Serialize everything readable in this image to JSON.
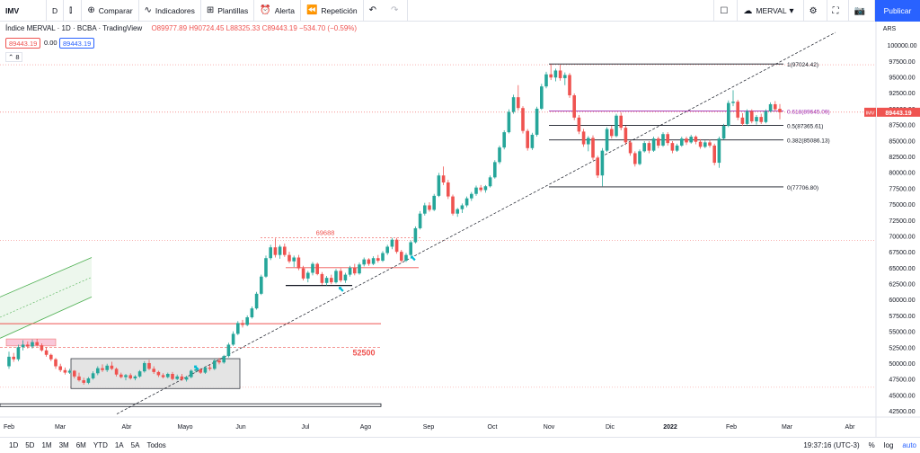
{
  "toolbar": {
    "symbol": "IMV",
    "interval": "D",
    "compare": "Comparar",
    "indicators": "Indicadores",
    "templates": "Plantillas",
    "alert": "Alerta",
    "replay": "Repetición",
    "layout_name": "MERVAL",
    "publish": "Publicar"
  },
  "legend": {
    "title": "Índice MERVAL · 1D · BCBA · TradingView",
    "ohlc": "O89977.89 H90724.45 L88325.33 C89443.19 −534.70 (−0.59%)",
    "bid": "89443.19",
    "spread": "0.00",
    "ask": "89443.19",
    "collapse_count": "8"
  },
  "colors": {
    "up": "#26a69a",
    "down": "#ef5350",
    "fib": "#9c27b0",
    "accent": "#2962ff"
  },
  "bottom": {
    "ranges": [
      "1D",
      "5D",
      "1M",
      "3M",
      "6M",
      "YTD",
      "1A",
      "5A",
      "Todos"
    ],
    "time": "19:37:16 (UTC-3)",
    "percent": "%",
    "log": "log",
    "auto": "auto"
  },
  "chart_data": {
    "type": "candlestick",
    "currency": "ARS",
    "last_price": "89443.19",
    "last_price_tag": "IMV",
    "y_ticks": [
      42500,
      45000,
      47500,
      50000,
      52500,
      55000,
      57500,
      60000,
      62500,
      65000,
      67500,
      70000,
      72500,
      75000,
      77500,
      80000,
      82500,
      85000,
      87500,
      90000,
      92500,
      95000,
      97500,
      100000
    ],
    "ylim": [
      41800,
      102000
    ],
    "x_ticks": [
      "Feb",
      "Mar",
      "Abr",
      "Mayo",
      "Jun",
      "Jul",
      "Ago",
      "Sep",
      "Oct",
      "Nov",
      "Dic",
      "2022",
      "Feb",
      "Mar",
      "Abr"
    ],
    "fib_levels": [
      {
        "label": "1(97024.42)",
        "value": 97024.42
      },
      {
        "label": "0.618(89645.09)",
        "value": 89645.09
      },
      {
        "label": "0.5(87365.61)",
        "value": 87365.61
      },
      {
        "label": "0.382(85086.13)",
        "value": 85086.13
      },
      {
        "label": "0(77706.80)",
        "value": 77706.8
      }
    ],
    "annotations": [
      {
        "text": "69688",
        "value": 69688
      },
      {
        "text": "52500",
        "value": 52500
      }
    ],
    "candles": [
      [
        0,
        49500,
        51800,
        49100,
        51000
      ],
      [
        1,
        51000,
        51600,
        50200,
        50600
      ],
      [
        2,
        50600,
        52900,
        50300,
        52500
      ],
      [
        3,
        52500,
        53600,
        52000,
        52900
      ],
      [
        4,
        52900,
        53400,
        52300,
        52600
      ],
      [
        5,
        52600,
        53700,
        52300,
        53300
      ],
      [
        6,
        53300,
        53800,
        52600,
        52800
      ],
      [
        7,
        52800,
        53100,
        51800,
        52000
      ],
      [
        8,
        52000,
        52500,
        51000,
        51300
      ],
      [
        9,
        51300,
        51500,
        50300,
        50600
      ],
      [
        10,
        50600,
        50800,
        49100,
        49500
      ],
      [
        11,
        49500,
        49900,
        48600,
        48900
      ],
      [
        12,
        48900,
        49300,
        48200,
        48500
      ],
      [
        13,
        48500,
        49100,
        48300,
        48800
      ],
      [
        14,
        48800,
        48900,
        47600,
        47900
      ],
      [
        15,
        47900,
        48500,
        47100,
        47300
      ],
      [
        16,
        47300,
        47700,
        46600,
        46900
      ],
      [
        17,
        46900,
        47800,
        46700,
        47600
      ],
      [
        18,
        47600,
        48700,
        47400,
        48400
      ],
      [
        19,
        48400,
        49500,
        48100,
        49200
      ],
      [
        20,
        49200,
        49800,
        48600,
        48900
      ],
      [
        21,
        48900,
        49900,
        48600,
        49600
      ],
      [
        22,
        49600,
        50200,
        48900,
        49100
      ],
      [
        23,
        49100,
        49300,
        47900,
        48200
      ],
      [
        24,
        48200,
        48500,
        47600,
        47800
      ],
      [
        25,
        47800,
        48300,
        47300,
        48100
      ],
      [
        26,
        48100,
        48400,
        47400,
        47600
      ],
      [
        27,
        47600,
        48100,
        47300,
        47900
      ],
      [
        28,
        47900,
        48900,
        47700,
        48700
      ],
      [
        29,
        48700,
        50300,
        48500,
        50000
      ],
      [
        30,
        50000,
        50500,
        48900,
        49100
      ],
      [
        31,
        49100,
        49500,
        48300,
        48600
      ],
      [
        32,
        48600,
        48800,
        47800,
        48100
      ],
      [
        33,
        48100,
        48400,
        47600,
        47800
      ],
      [
        34,
        47800,
        48500,
        47600,
        48300
      ],
      [
        35,
        48300,
        48600,
        47300,
        47500
      ],
      [
        36,
        47500,
        48200,
        47300,
        47900
      ],
      [
        37,
        47900,
        48300,
        47200,
        47400
      ],
      [
        38,
        47400,
        48000,
        47100,
        47800
      ],
      [
        39,
        47800,
        49000,
        47600,
        48800
      ],
      [
        40,
        48800,
        49300,
        48500,
        49000
      ],
      [
        41,
        49000,
        49200,
        48300,
        48500
      ],
      [
        42,
        48500,
        49500,
        48300,
        49300
      ],
      [
        43,
        49300,
        49700,
        48800,
        49100
      ],
      [
        44,
        49100,
        50600,
        48900,
        50400
      ],
      [
        45,
        50400,
        50800,
        49800,
        50100
      ],
      [
        46,
        50100,
        51300,
        49900,
        51100
      ],
      [
        47,
        51100,
        53200,
        50900,
        52900
      ],
      [
        48,
        52900,
        55000,
        52700,
        54600
      ],
      [
        49,
        54600,
        56600,
        54400,
        56300
      ],
      [
        50,
        56300,
        56800,
        55600,
        56000
      ],
      [
        51,
        56000,
        57500,
        55800,
        57200
      ],
      [
        52,
        57200,
        58900,
        57000,
        58600
      ],
      [
        53,
        58600,
        61200,
        58400,
        60900
      ],
      [
        54,
        60900,
        63900,
        60700,
        63600
      ],
      [
        55,
        63600,
        66900,
        63400,
        66500
      ],
      [
        56,
        66500,
        68600,
        66200,
        68200
      ],
      [
        57,
        68200,
        69600,
        66600,
        67000
      ],
      [
        58,
        67000,
        68600,
        66400,
        68300
      ],
      [
        59,
        68300,
        68800,
        66700,
        67000
      ],
      [
        60,
        67000,
        67500,
        65700,
        66000
      ],
      [
        61,
        66000,
        66900,
        65100,
        66600
      ],
      [
        62,
        66600,
        67000,
        64600,
        64900
      ],
      [
        63,
        64900,
        65300,
        63000,
        63300
      ],
      [
        64,
        63300,
        64500,
        62700,
        64200
      ],
      [
        65,
        64200,
        65900,
        63800,
        65600
      ],
      [
        66,
        65600,
        65800,
        63800,
        64000
      ],
      [
        67,
        64000,
        64300,
        62300,
        62600
      ],
      [
        68,
        62600,
        63700,
        62200,
        63400
      ],
      [
        69,
        63400,
        63900,
        62400,
        62700
      ],
      [
        70,
        62700,
        64800,
        62500,
        64500
      ],
      [
        71,
        64500,
        64900,
        62700,
        63000
      ],
      [
        72,
        63000,
        64200,
        62600,
        63900
      ],
      [
        73,
        63900,
        65300,
        63600,
        65000
      ],
      [
        74,
        65000,
        65600,
        63800,
        64100
      ],
      [
        75,
        64100,
        65800,
        63900,
        65500
      ],
      [
        76,
        65500,
        66600,
        65200,
        66300
      ],
      [
        77,
        66300,
        66500,
        65300,
        65600
      ],
      [
        78,
        65600,
        66800,
        65400,
        66500
      ],
      [
        79,
        66500,
        67000,
        65800,
        66100
      ],
      [
        80,
        66100,
        67600,
        65900,
        67300
      ],
      [
        81,
        67300,
        68600,
        67000,
        68300
      ],
      [
        82,
        68300,
        69700,
        67900,
        69400
      ],
      [
        83,
        69400,
        69700,
        67200,
        67500
      ],
      [
        84,
        67500,
        67800,
        65800,
        66100
      ],
      [
        85,
        66100,
        67300,
        65900,
        67000
      ],
      [
        86,
        67000,
        69300,
        66800,
        69000
      ],
      [
        87,
        69000,
        71500,
        68800,
        71200
      ],
      [
        88,
        71200,
        73900,
        71000,
        73500
      ],
      [
        89,
        73500,
        75200,
        73200,
        74800
      ],
      [
        90,
        74800,
        75300,
        73800,
        74100
      ],
      [
        91,
        74100,
        76600,
        73900,
        76300
      ],
      [
        92,
        76300,
        79900,
        76100,
        79500
      ],
      [
        93,
        79500,
        80900,
        78000,
        78400
      ],
      [
        94,
        78400,
        78800,
        75800,
        76200
      ],
      [
        95,
        76200,
        76500,
        73200,
        73500
      ],
      [
        96,
        73500,
        74400,
        73000,
        74200
      ],
      [
        97,
        74200,
        75100,
        73600,
        74800
      ],
      [
        98,
        74800,
        76200,
        74500,
        75900
      ],
      [
        99,
        75900,
        76900,
        75500,
        76600
      ],
      [
        100,
        76600,
        77900,
        76300,
        77600
      ],
      [
        101,
        77600,
        78000,
        76900,
        77200
      ],
      [
        102,
        77200,
        78000,
        76800,
        77800
      ],
      [
        103,
        77800,
        79500,
        77600,
        79200
      ],
      [
        104,
        79200,
        81900,
        79000,
        81600
      ],
      [
        105,
        81600,
        84200,
        81300,
        83900
      ],
      [
        106,
        83900,
        86600,
        83600,
        86300
      ],
      [
        107,
        86300,
        89900,
        86100,
        89500
      ],
      [
        108,
        89500,
        92200,
        89200,
        91800
      ],
      [
        109,
        91800,
        93700,
        89700,
        90100
      ],
      [
        110,
        90100,
        90400,
        86100,
        86500
      ],
      [
        111,
        86500,
        86800,
        83400,
        83800
      ],
      [
        112,
        83800,
        86200,
        83500,
        85900
      ],
      [
        113,
        85900,
        90300,
        85600,
        90000
      ],
      [
        114,
        90000,
        93900,
        89800,
        93500
      ],
      [
        115,
        93500,
        95800,
        93200,
        95400
      ],
      [
        116,
        95400,
        97000,
        94500,
        94900
      ],
      [
        117,
        94900,
        96300,
        94300,
        96000
      ],
      [
        118,
        96000,
        96900,
        94400,
        94800
      ],
      [
        119,
        94800,
        95700,
        93700,
        95300
      ],
      [
        120,
        95300,
        95600,
        91700,
        92100
      ],
      [
        121,
        92100,
        92400,
        88200,
        88600
      ],
      [
        122,
        88600,
        89000,
        86000,
        86400
      ],
      [
        123,
        86400,
        86800,
        84000,
        84400
      ],
      [
        124,
        84400,
        85700,
        83300,
        85400
      ],
      [
        125,
        85400,
        85800,
        81900,
        82300
      ],
      [
        126,
        82300,
        82600,
        79100,
        79500
      ],
      [
        127,
        79500,
        83800,
        77800,
        83400
      ],
      [
        128,
        83400,
        87100,
        83200,
        86800
      ],
      [
        129,
        86800,
        87300,
        85300,
        85700
      ],
      [
        130,
        85700,
        89200,
        85500,
        88900
      ],
      [
        131,
        88900,
        89400,
        86600,
        87000
      ],
      [
        132,
        87000,
        87300,
        84300,
        84700
      ],
      [
        133,
        84700,
        85000,
        82600,
        83000
      ],
      [
        134,
        83000,
        83300,
        80900,
        81300
      ],
      [
        135,
        81300,
        83600,
        81100,
        83300
      ],
      [
        136,
        83300,
        84900,
        83100,
        84600
      ],
      [
        137,
        84600,
        84900,
        83000,
        83400
      ],
      [
        138,
        83400,
        85600,
        83200,
        85300
      ],
      [
        139,
        85300,
        85600,
        83800,
        84200
      ],
      [
        140,
        84200,
        86300,
        84000,
        86000
      ],
      [
        141,
        86000,
        86300,
        84200,
        84600
      ],
      [
        142,
        84600,
        84900,
        83000,
        83400
      ],
      [
        143,
        83400,
        84500,
        83200,
        84200
      ],
      [
        144,
        84200,
        85600,
        84000,
        85300
      ],
      [
        145,
        85300,
        85600,
        84300,
        84700
      ],
      [
        146,
        84700,
        85900,
        84500,
        85600
      ],
      [
        147,
        85600,
        85800,
        84400,
        84800
      ],
      [
        148,
        84800,
        85200,
        83700,
        84000
      ],
      [
        149,
        84000,
        85000,
        83800,
        84700
      ],
      [
        150,
        84700,
        85100,
        83900,
        84200
      ],
      [
        151,
        84200,
        84500,
        81100,
        81500
      ],
      [
        152,
        81500,
        85600,
        80700,
        85300
      ],
      [
        153,
        85300,
        87600,
        85100,
        87300
      ],
      [
        154,
        87300,
        91300,
        87100,
        90900
      ],
      [
        155,
        90900,
        92900,
        90400,
        91100
      ],
      [
        156,
        91100,
        91400,
        88200,
        88600
      ],
      [
        157,
        88600,
        89300,
        87300,
        87600
      ],
      [
        158,
        87600,
        89900,
        87400,
        89600
      ],
      [
        159,
        89600,
        89900,
        87700,
        88000
      ],
      [
        160,
        88000,
        89000,
        87500,
        88700
      ],
      [
        161,
        88700,
        89200,
        87600,
        87900
      ],
      [
        162,
        87900,
        89900,
        87700,
        89600
      ],
      [
        163,
        89600,
        91000,
        89400,
        90700
      ],
      [
        164,
        90700,
        91200,
        89600,
        89900
      ],
      [
        165,
        89977.89,
        90724.45,
        88325.33,
        89443.19
      ]
    ]
  }
}
